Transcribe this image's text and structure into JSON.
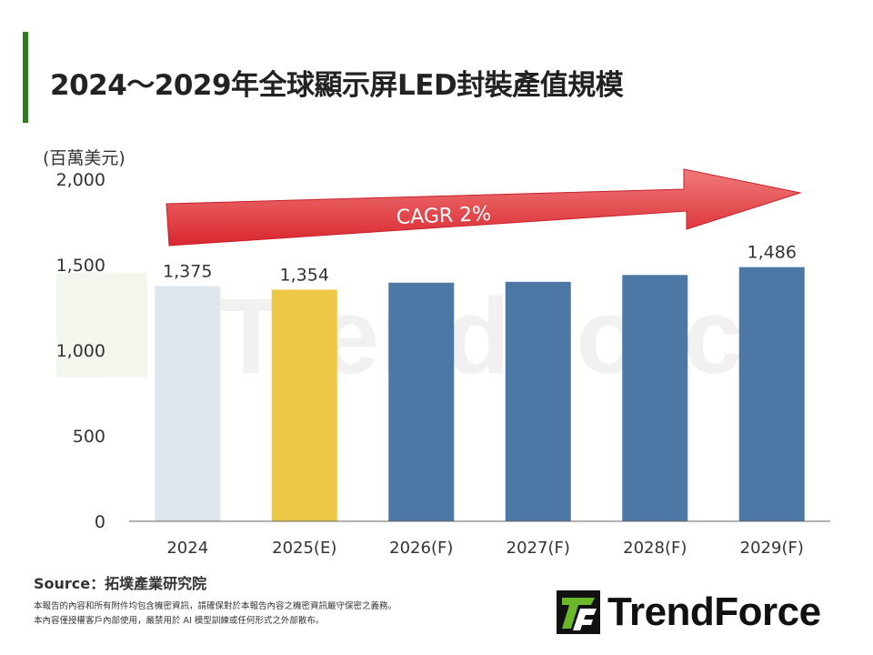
{
  "title": "2024～2029年全球顯示屏LED封裝產值規模",
  "unit_label": "(百萬美元)",
  "annotation": "CAGR 2%",
  "source": "Source：拓墣產業研究院",
  "disclaimer": [
    "本報告的內容和所有附件均包含機密資訊，請確保對於本報告內容之機密資訊嚴守保密之義務。",
    "本內容僅授權客戶內部使用，嚴禁用於 AI 模型訓練或任何形式之外部散布。"
  ],
  "watermark": "TrendForce",
  "logo_text": "TrendForce",
  "chart_data": {
    "type": "bar",
    "categories": [
      "2024",
      "2025(E)",
      "2026(F)",
      "2027(F)",
      "2028(F)",
      "2029(F)"
    ],
    "values": [
      1375,
      1354,
      1395,
      1400,
      1440,
      1486
    ],
    "data_labels": [
      "1,375",
      "1,354",
      "",
      "",
      "",
      "1,486"
    ],
    "colors": [
      "#dfe6ee",
      "#ecc846",
      "#4d78a5",
      "#4d78a5",
      "#4d78a5",
      "#4d78a5"
    ],
    "ylabel": "(百萬美元)",
    "ylim": [
      0,
      2000
    ],
    "yticks": [
      0,
      500,
      1000,
      1500,
      2000
    ],
    "ytick_labels": [
      "0",
      "500",
      "1,000",
      "1,500",
      "2,000"
    ],
    "grid": false,
    "legend": "none"
  }
}
